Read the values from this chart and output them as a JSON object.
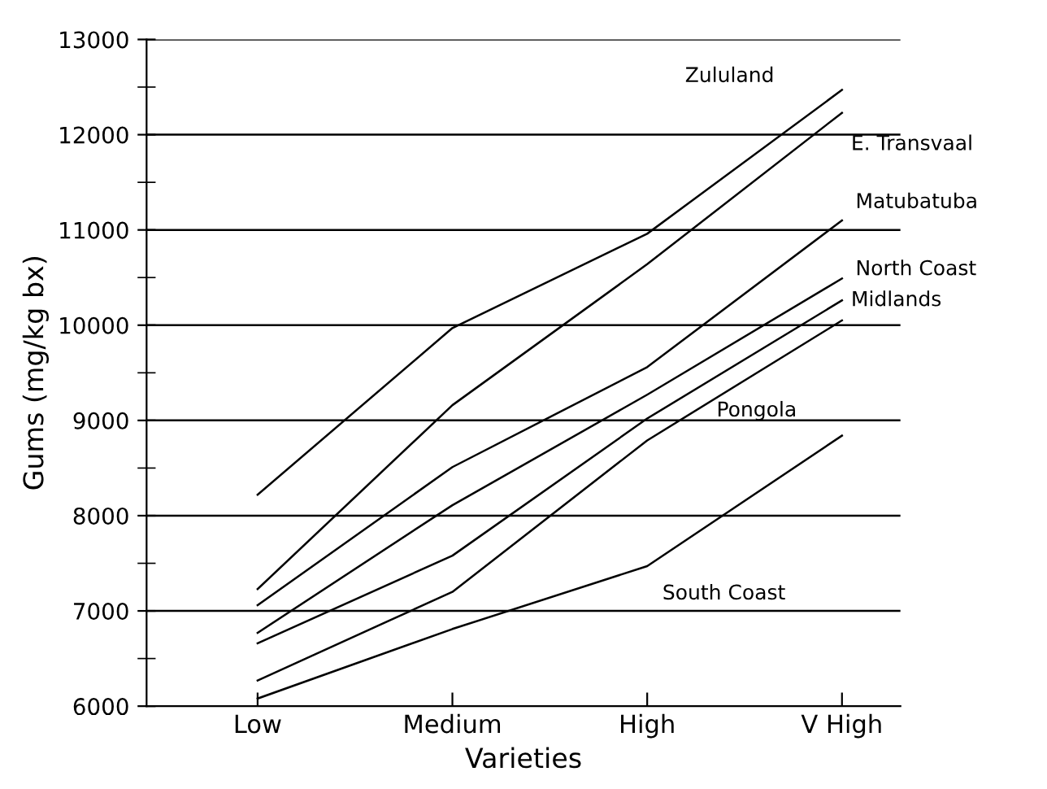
{
  "chart_data": {
    "type": "line",
    "xlabel": "Varieties",
    "ylabel": "Gums (mg/kg bx)",
    "categories": [
      "Low",
      "Medium",
      "High",
      "V High"
    ],
    "series": [
      {
        "name": "Zululand",
        "color": "#000000",
        "values": [
          8220,
          9970,
          10960,
          12470
        ]
      },
      {
        "name": "E. Transvaal",
        "color": "#000000",
        "values": [
          7230,
          9160,
          10640,
          12230
        ]
      },
      {
        "name": "Matubatuba",
        "color": "#000000",
        "values": [
          7060,
          8510,
          9560,
          11100
        ]
      },
      {
        "name": "North Coast",
        "color": "#000000",
        "values": [
          6770,
          8110,
          9270,
          10490
        ]
      },
      {
        "name": "Midlands",
        "color": "#000000",
        "values": [
          6660,
          7580,
          9020,
          10260
        ]
      },
      {
        "name": "Pongola",
        "color": "#000000",
        "values": [
          6270,
          7200,
          8790,
          10050
        ]
      },
      {
        "name": "South Coast",
        "color": "#000000",
        "values": [
          6080,
          6810,
          7470,
          8840
        ]
      }
    ],
    "ylim": [
      6000,
      13000
    ],
    "yticks": [
      6000,
      7000,
      8000,
      9000,
      10000,
      11000,
      12000,
      13000
    ],
    "grid": "y",
    "legend": false,
    "marker": "none",
    "line_style": "solid"
  }
}
